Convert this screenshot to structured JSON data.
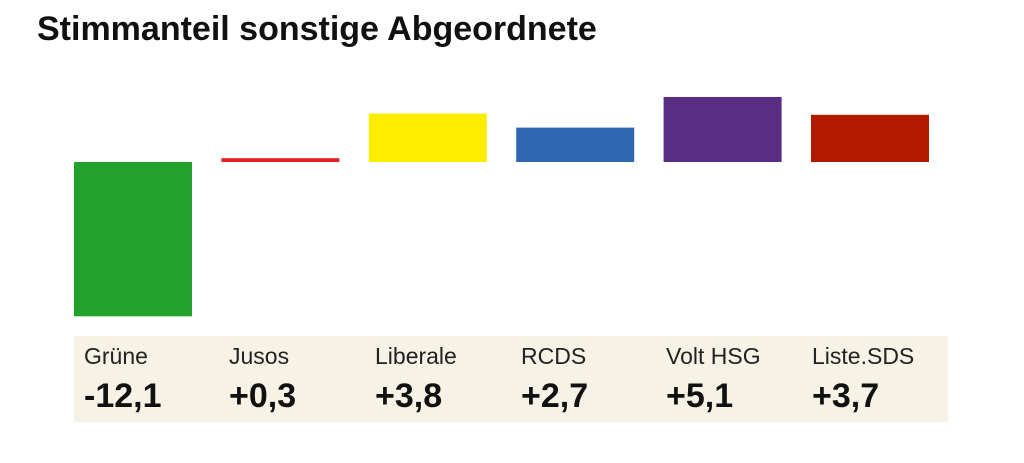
{
  "chart_data": {
    "type": "bar",
    "title": "Stimmanteil sonstige Abgeordnete",
    "categories": [
      "Grüne",
      "Jusos",
      "Liberale",
      "RCDS",
      "Volt HSG",
      "Liste.SDS"
    ],
    "values": [
      -12.1,
      0.3,
      3.8,
      2.7,
      5.1,
      3.7
    ],
    "value_labels": [
      "-12,1",
      "+0,3",
      "+3,8",
      "+2,7",
      "+5,1",
      "+3,7"
    ],
    "colors": [
      "#22a22c",
      "#e11f1f",
      "#ffed00",
      "#2f67b2",
      "#5a2d85",
      "#b21a00"
    ],
    "xlabel": "",
    "ylabel": "",
    "ylim": [
      -12.1,
      5.1
    ],
    "grid": false,
    "legend": "none"
  }
}
